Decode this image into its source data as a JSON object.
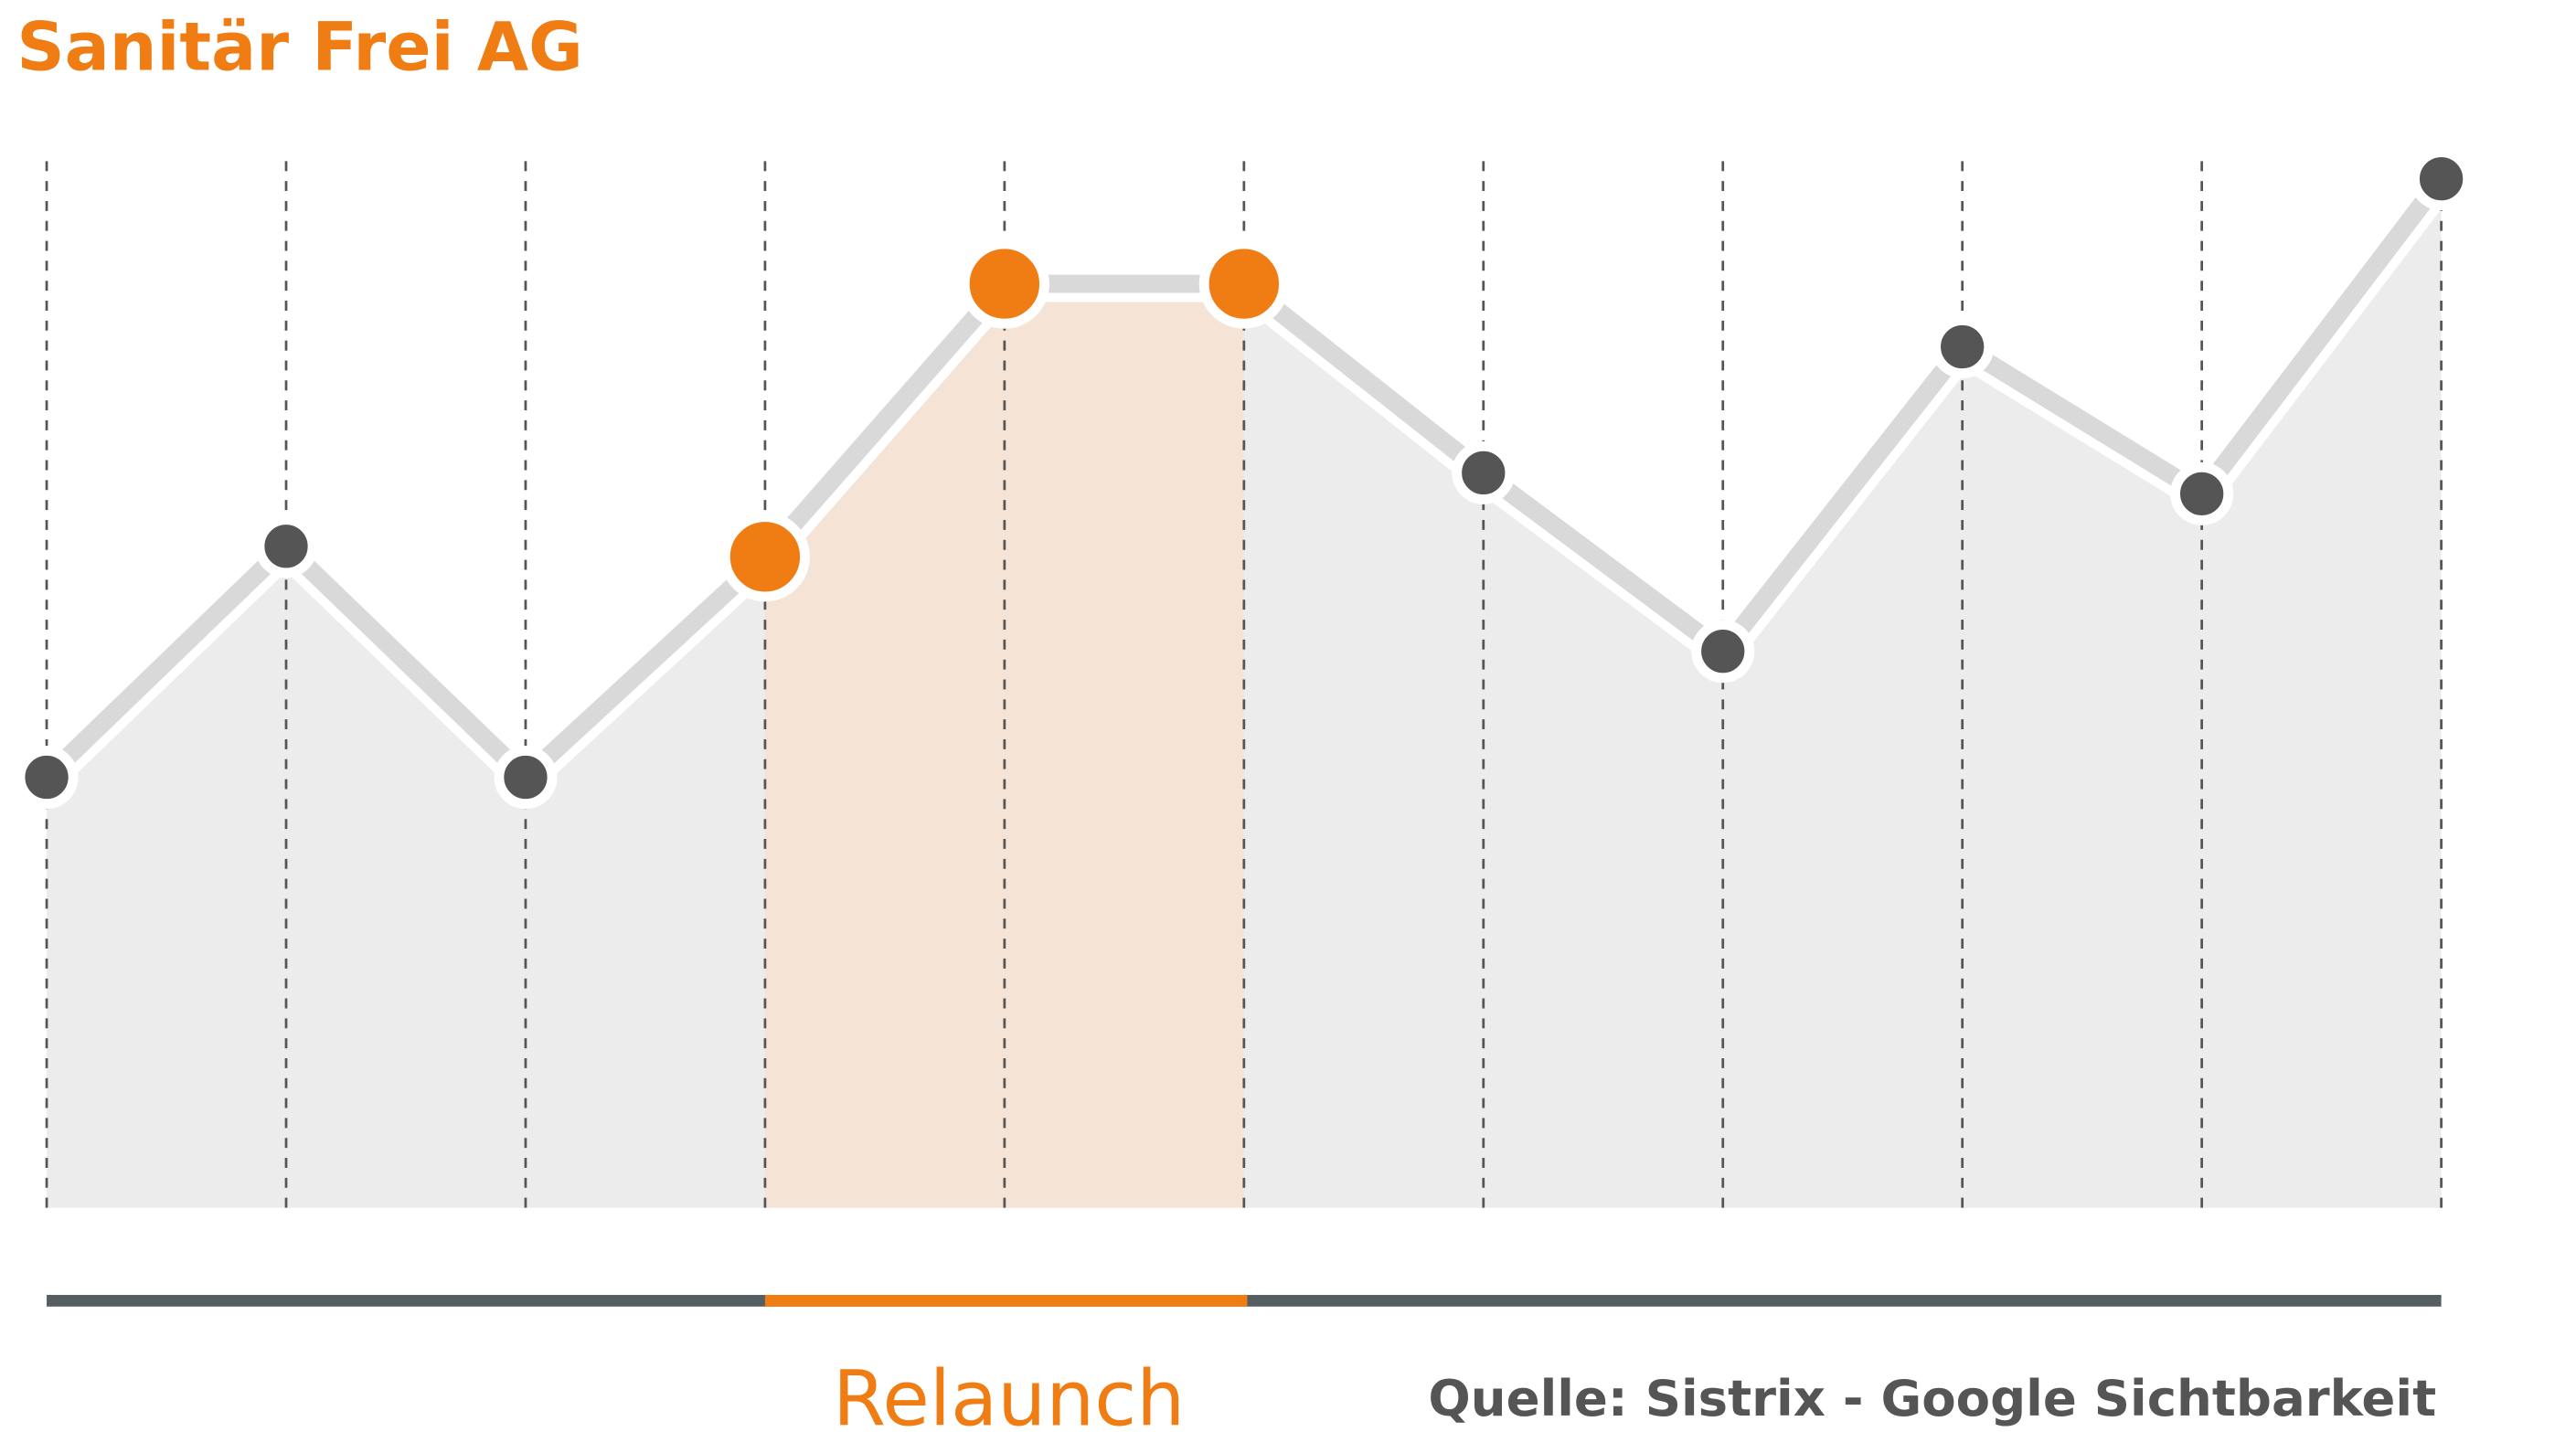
{
  "chart_data": {
    "type": "line",
    "title": "Sanitär Frei AG",
    "categories": [
      null,
      null,
      null,
      null,
      null,
      null,
      null,
      null,
      null,
      null,
      null
    ],
    "values": [
      41,
      63,
      41,
      62,
      88,
      88,
      70,
      53,
      82,
      68,
      98
    ],
    "ylim": [
      0,
      100
    ],
    "color": "#d9d9d9",
    "point_color": "#555555",
    "area_color": "#ececec",
    "highlight_range": [
      3,
      5
    ],
    "highlight_color": "#f07d14",
    "highlight_area_color": "#f5e4d6",
    "highlight_label": "Relaunch",
    "source": "Quelle: Sistrix - Google Sichtbarkeit",
    "grid": true
  }
}
